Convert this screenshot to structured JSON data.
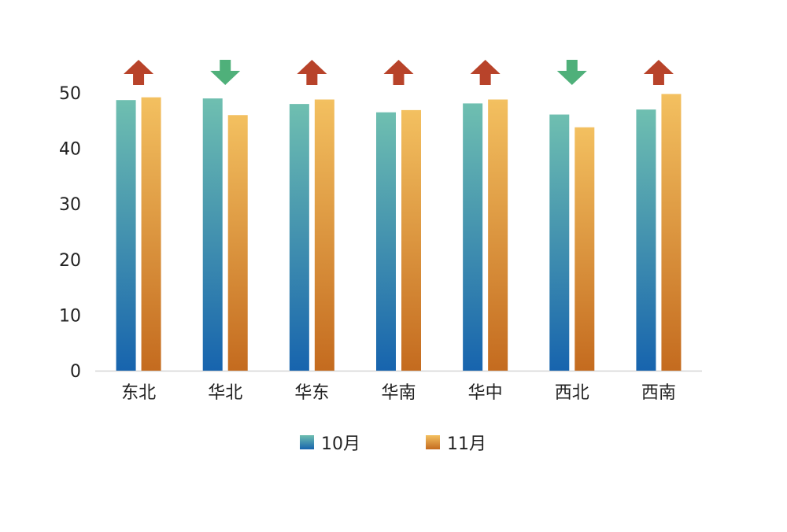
{
  "chart_data": {
    "type": "bar",
    "categories": [
      "东北",
      "华北",
      "华东",
      "华南",
      "华中",
      "西北",
      "西南"
    ],
    "series": [
      {
        "name": "10月",
        "values": [
          48.7,
          49.0,
          48.0,
          46.5,
          48.1,
          46.1,
          47.0
        ],
        "color_top": "#6fbfb0",
        "color_bottom": "#1764ae"
      },
      {
        "name": "11月",
        "values": [
          49.2,
          46.0,
          48.8,
          46.9,
          48.8,
          43.8,
          49.8
        ],
        "color_top": "#f3c060",
        "color_bottom": "#c46b1f"
      }
    ],
    "trend": [
      "up",
      "down",
      "up",
      "up",
      "up",
      "down",
      "up"
    ],
    "trend_colors": {
      "up": "#b8432a",
      "down": "#4fb07a"
    },
    "ylim": [
      0,
      50
    ],
    "yticks": [
      0,
      10,
      20,
      30,
      40,
      50
    ],
    "grid": false,
    "legend_position": "bottom-center"
  }
}
